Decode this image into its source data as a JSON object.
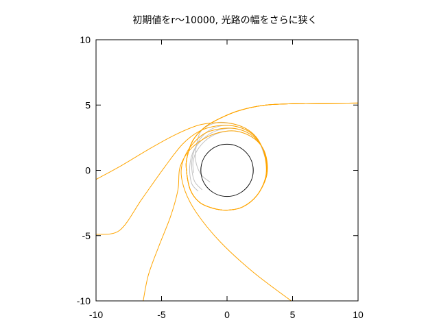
{
  "chart_data": {
    "type": "line",
    "title": "初期値をr〜10000, 光路の幅をさらに狭く",
    "xlabel": "",
    "ylabel": "",
    "xlim": [
      -10,
      10
    ],
    "ylim": [
      -10,
      10
    ],
    "x_ticks": [
      "-10",
      "-5",
      "0",
      "5",
      "10"
    ],
    "y_ticks": [
      "-10",
      "-5",
      "0",
      "5",
      "10"
    ],
    "grid": false,
    "colors": {
      "photon": "#ffa500",
      "inner": "#c0c0c0",
      "horizon": "#000000"
    },
    "horizon_circle": {
      "center": [
        0,
        0
      ],
      "radius": 2
    },
    "photon_paths": [
      {
        "points": [
          [
            10,
            5.15
          ],
          [
            6,
            5.12
          ],
          [
            3,
            5.0
          ],
          [
            1,
            4.6
          ],
          [
            -0.5,
            4.0
          ],
          [
            -1.7,
            3.3
          ],
          [
            -2.6,
            2.3
          ],
          [
            -3.05,
            1.0
          ],
          [
            -3.1,
            0
          ],
          [
            -2.8,
            -1.5
          ],
          [
            -2.1,
            -2.45
          ],
          [
            -1.1,
            -2.9
          ],
          [
            0,
            -3.05
          ],
          [
            1.2,
            -2.8
          ],
          [
            2.3,
            -1.9
          ],
          [
            2.95,
            -0.5
          ],
          [
            2.9,
            1.0
          ],
          [
            2.4,
            2.3
          ],
          [
            1.6,
            3.1
          ],
          [
            0.5,
            3.55
          ],
          [
            -0.8,
            3.65
          ],
          [
            -2.2,
            3.45
          ],
          [
            -4,
            2.7
          ],
          [
            -6,
            1.6
          ],
          [
            -8,
            0.4
          ],
          [
            -10,
            -0.7
          ]
        ]
      },
      {
        "points": [
          [
            10,
            5.15
          ],
          [
            6,
            5.12
          ],
          [
            3,
            5.0
          ],
          [
            1,
            4.6
          ],
          [
            -0.5,
            4.0
          ],
          [
            -1.7,
            3.3
          ],
          [
            -2.6,
            2.3
          ],
          [
            -3.05,
            1.0
          ],
          [
            -3.1,
            0
          ],
          [
            -2.8,
            -1.5
          ],
          [
            -2.1,
            -2.45
          ],
          [
            -1.1,
            -2.9
          ],
          [
            0,
            -3.05
          ],
          [
            1.2,
            -2.8
          ],
          [
            2.3,
            -1.9
          ],
          [
            2.95,
            -0.5
          ],
          [
            2.95,
            0.9
          ],
          [
            2.5,
            2.1
          ],
          [
            1.7,
            2.95
          ],
          [
            0.5,
            3.4
          ],
          [
            -0.8,
            3.4
          ],
          [
            -2.1,
            3.0
          ],
          [
            -3.4,
            2.0
          ],
          [
            -4.8,
            0.2
          ],
          [
            -6.5,
            -2.2
          ],
          [
            -8.2,
            -4.6
          ],
          [
            -10,
            -4.9
          ]
        ]
      },
      {
        "points": [
          [
            10,
            5.15
          ],
          [
            6,
            5.12
          ],
          [
            3,
            5.0
          ],
          [
            1,
            4.6
          ],
          [
            -0.5,
            4.0
          ],
          [
            -1.7,
            3.3
          ],
          [
            -2.6,
            2.3
          ],
          [
            -3.05,
            1.0
          ],
          [
            -3.1,
            0
          ],
          [
            -2.8,
            -1.5
          ],
          [
            -2.1,
            -2.45
          ],
          [
            -1.1,
            -2.9
          ],
          [
            0,
            -3.05
          ],
          [
            1.2,
            -2.8
          ],
          [
            2.3,
            -1.9
          ],
          [
            3.0,
            -0.5
          ],
          [
            3.0,
            0.8
          ],
          [
            2.6,
            1.9
          ],
          [
            1.8,
            2.75
          ],
          [
            0.6,
            3.2
          ],
          [
            -0.7,
            3.15
          ],
          [
            -1.9,
            2.7
          ],
          [
            -3.0,
            1.5
          ],
          [
            -3.5,
            0
          ],
          [
            -3.2,
            -1.6
          ],
          [
            -2.3,
            -3.3
          ],
          [
            -0.5,
            -5.5
          ],
          [
            2,
            -7.8
          ],
          [
            4.9,
            -10
          ]
        ]
      },
      {
        "points": [
          [
            10,
            5.15
          ],
          [
            6,
            5.12
          ],
          [
            3,
            5.0
          ],
          [
            1,
            4.6
          ],
          [
            -0.5,
            4.0
          ],
          [
            -1.7,
            3.3
          ],
          [
            -2.6,
            2.3
          ],
          [
            -3.05,
            1.0
          ],
          [
            -3.1,
            0
          ],
          [
            -2.8,
            -1.5
          ],
          [
            -2.1,
            -2.45
          ],
          [
            -1.1,
            -2.9
          ],
          [
            0,
            -3.05
          ],
          [
            1.2,
            -2.8
          ],
          [
            2.3,
            -1.9
          ],
          [
            3.0,
            -0.5
          ],
          [
            3.05,
            0.7
          ],
          [
            2.7,
            1.75
          ],
          [
            1.9,
            2.55
          ],
          [
            0.7,
            3.0
          ],
          [
            -0.6,
            2.9
          ],
          [
            -1.8,
            2.4
          ],
          [
            -2.9,
            1.5
          ],
          [
            -3.6,
            0.2
          ],
          [
            -3.75,
            -1.5
          ],
          [
            -4.3,
            -3.5
          ],
          [
            -5.2,
            -5.8
          ],
          [
            -6.0,
            -8.0
          ],
          [
            -6.4,
            -10
          ]
        ]
      }
    ],
    "inner_paths": [
      {
        "points": [
          [
            2.9,
            1.0
          ],
          [
            2.4,
            2.3
          ],
          [
            1.6,
            3.1
          ],
          [
            0.5,
            3.55
          ],
          [
            -0.8,
            3.65
          ],
          [
            -1.9,
            3.1
          ],
          [
            -2.3,
            2.1
          ],
          [
            -2.4,
            0.8
          ],
          [
            -2.0,
            -0.3
          ],
          [
            -1.3,
            -0.9
          ]
        ]
      },
      {
        "points": [
          [
            2.95,
            0.9
          ],
          [
            2.5,
            2.1
          ],
          [
            1.7,
            2.95
          ],
          [
            0.5,
            3.4
          ],
          [
            -0.7,
            3.35
          ],
          [
            -1.7,
            2.8
          ],
          [
            -2.4,
            1.8
          ],
          [
            -2.7,
            0.5
          ],
          [
            -2.5,
            -0.8
          ],
          [
            -1.9,
            -1.5
          ]
        ]
      },
      {
        "points": [
          [
            3.0,
            0.8
          ],
          [
            2.6,
            1.9
          ],
          [
            1.8,
            2.75
          ],
          [
            0.6,
            3.2
          ],
          [
            -0.6,
            3.1
          ],
          [
            -1.6,
            2.6
          ],
          [
            -2.5,
            1.6
          ],
          [
            -2.85,
            0.3
          ],
          [
            -2.7,
            -1.0
          ],
          [
            -2.2,
            -1.6
          ]
        ]
      },
      {
        "points": [
          [
            3.05,
            0.7
          ],
          [
            2.7,
            1.75
          ],
          [
            1.9,
            2.55
          ],
          [
            0.7,
            3.0
          ],
          [
            -0.5,
            2.9
          ],
          [
            -1.5,
            2.4
          ],
          [
            -2.3,
            1.5
          ],
          [
            -2.6,
            0.6
          ],
          [
            -2.55,
            -0.2
          ]
        ]
      }
    ]
  }
}
